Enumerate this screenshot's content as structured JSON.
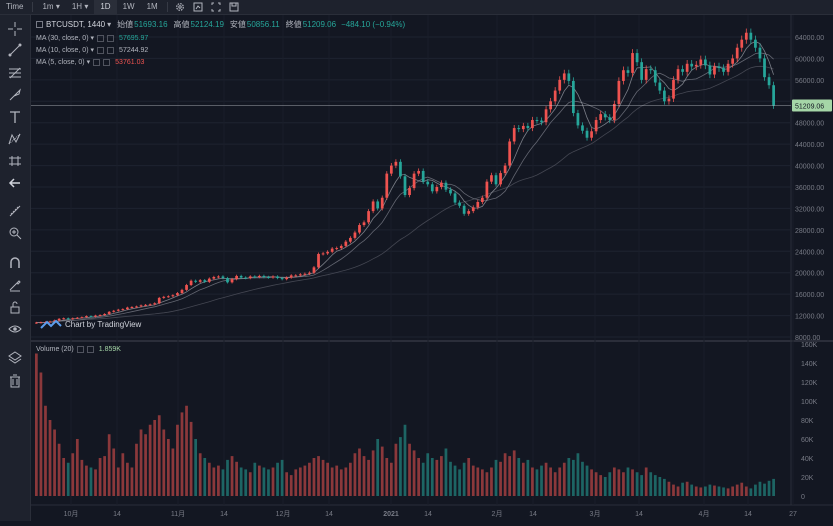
{
  "toolbar": {
    "time_label": "Time",
    "intervals": [
      "1m",
      "1H",
      "1D",
      "1W",
      "1M"
    ],
    "active_interval": "1D"
  },
  "legend": {
    "symbol": "BTCUSDT, 1440",
    "open_label": "始値",
    "open": "51693.16",
    "high_label": "高値",
    "high": "52124.19",
    "low_label": "安値",
    "low": "50856.11",
    "close_label": "終値",
    "close": "51209.06",
    "change": "−484.10 (−0.94%)",
    "ma30_label": "MA (30, close, 0)",
    "ma30": "57695.97",
    "ma10_label": "MA (10, close, 0)",
    "ma10": "57244.92",
    "ma5_label": "MA (5, close, 0)",
    "ma5": "53761.03",
    "volume_label": "Volume (20)",
    "volume": "1.859K",
    "watermark": "Chart by TradingView"
  },
  "colors": {
    "up": "#ef5350",
    "down": "#26a69a",
    "background": "#131722",
    "last_price": "#a5d6a7"
  },
  "chart_data": {
    "type": "candlestick",
    "price_axis": [
      "64000.00",
      "60000.00",
      "56000.00",
      "52000.00",
      "48000.00",
      "44000.00",
      "40000.00",
      "36000.00",
      "32000.00",
      "28000.00",
      "24000.00",
      "20000.00",
      "16000.00",
      "12000.00",
      "8000.00"
    ],
    "price_range": [
      8000,
      64000
    ],
    "last_price": "51209.06",
    "volume_axis": [
      "160K",
      "140K",
      "120K",
      "100K",
      "80K",
      "60K",
      "40K",
      "20K",
      "0"
    ],
    "volume_range": [
      0,
      160000
    ],
    "time_axis": [
      "10月",
      "14",
      "11月",
      "14",
      "12月",
      "14",
      "2021",
      "14",
      "2月",
      "14",
      "3月",
      "14",
      "4月",
      "14",
      "27"
    ],
    "close_series": [
      10700,
      10750,
      10800,
      10900,
      11100,
      11400,
      11500,
      11350,
      11500,
      11600,
      11700,
      11900,
      11800,
      12000,
      12100,
      12300,
      12700,
      12900,
      13100,
      13200,
      13500,
      13600,
      13700,
      13900,
      14000,
      14100,
      14300,
      15300,
      15500,
      15600,
      15800,
      16200,
      16800,
      17700,
      18500,
      18300,
      18600,
      18300,
      18900,
      19200,
      19300,
      19000,
      18200,
      18800,
      19400,
      19100,
      19000,
      19300,
      19200,
      19400,
      19200,
      19100,
      19300,
      19000,
      18800,
      19100,
      19500,
      19500,
      19700,
      19800,
      20000,
      21000,
      23500,
      23600,
      23900,
      24500,
      24600,
      25000,
      25800,
      26500,
      27500,
      28900,
      29400,
      31500,
      33300,
      32000,
      34000,
      38500,
      40000,
      40700,
      38000,
      34500,
      35800,
      38500,
      39000,
      37000,
      36500,
      35200,
      36000,
      36800,
      35500,
      34800,
      33100,
      32500,
      31000,
      31500,
      32200,
      33200,
      34000,
      37000,
      38200,
      36500,
      38600,
      40000,
      44500,
      47000,
      46800,
      47400,
      47000,
      48500,
      48400,
      48100,
      50500,
      52000,
      54000,
      56000,
      57200,
      55800,
      49800,
      47500,
      46500,
      45200,
      46400,
      48500,
      49600,
      49000,
      48500,
      51500,
      55800,
      57800,
      57300,
      61000,
      59300,
      56000,
      58000,
      57800,
      55500,
      54000,
      52000,
      52500,
      56000,
      58000,
      57500,
      59000,
      58500,
      58800,
      59800,
      58700,
      57000,
      58500,
      58200,
      57500,
      59000,
      60000,
      62000,
      63500,
      64800,
      63500,
      62000,
      60000,
      56500,
      55000,
      51200
    ],
    "volume_series": [
      150000,
      130000,
      95000,
      80000,
      70000,
      55000,
      40000,
      35000,
      45000,
      60000,
      38000,
      32000,
      30000,
      28000,
      40000,
      42000,
      65000,
      50000,
      30000,
      45000,
      35000,
      30000,
      55000,
      70000,
      65000,
      75000,
      80000,
      85000,
      70000,
      60000,
      50000,
      75000,
      88000,
      95000,
      78000,
      60000,
      45000,
      40000,
      35000,
      30000,
      32000,
      28000,
      38000,
      42000,
      36000,
      30000,
      28000,
      25000,
      35000,
      32000,
      30000,
      28000,
      30000,
      35000,
      38000,
      25000,
      22000,
      28000,
      30000,
      32000,
      35000,
      40000,
      42000,
      38000,
      35000,
      30000,
      32000,
      28000,
      30000,
      35000,
      45000,
      50000,
      42000,
      38000,
      48000,
      60000,
      52000,
      40000,
      35000,
      55000,
      62000,
      75000,
      55000,
      48000,
      40000,
      35000,
      45000,
      40000,
      38000,
      42000,
      50000,
      36000,
      32000,
      28000,
      35000,
      40000,
      32000,
      30000,
      28000,
      25000,
      30000,
      38000,
      36000,
      45000,
      42000,
      48000,
      40000,
      35000,
      38000,
      30000,
      28000,
      32000,
      35000,
      30000,
      25000,
      30000,
      35000,
      40000,
      38000,
      45000,
      36000,
      32000,
      28000,
      25000,
      22000,
      20000,
      25000,
      30000,
      28000,
      25000,
      30000,
      28000,
      25000,
      22000,
      30000,
      25000,
      22000,
      20000,
      18000,
      15000,
      12000,
      10000,
      14000,
      15000,
      12000,
      10000,
      9000,
      10000,
      12000,
      11000,
      10000,
      9000,
      8000,
      10000,
      12000,
      14000,
      10000,
      8000,
      12000,
      15000,
      13000,
      16000,
      18000,
      15000,
      12000
    ]
  }
}
